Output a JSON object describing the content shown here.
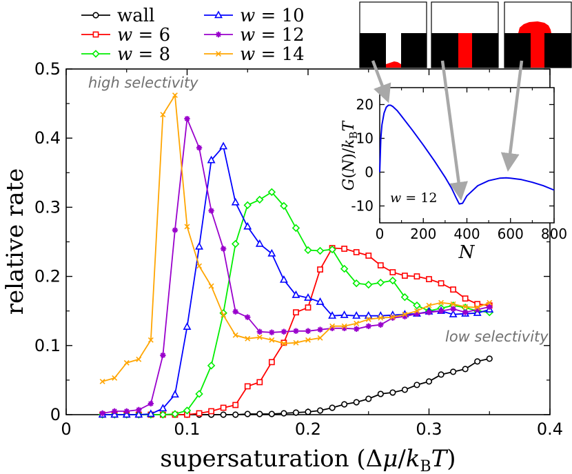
{
  "chart_data": [
    {
      "type": "line",
      "title": "",
      "xlabel": "supersaturation  (Δμ/k_B T)",
      "ylabel": "relative rate",
      "xlim": [
        0,
        0.4
      ],
      "ylim": [
        0,
        0.5
      ],
      "xticks": [
        "0",
        "0.1",
        "0.2",
        "0.3",
        "0.4"
      ],
      "yticks": [
        "0",
        "0.1",
        "0.2",
        "0.3",
        "0.4",
        "0.5"
      ],
      "legend_position": "top-left",
      "annotations": [
        "high selectivity",
        "low selectivity"
      ],
      "series": [
        {
          "name": "wall",
          "label_text": "wall",
          "color": "#000000",
          "marker": "circle",
          "x": [
            0.03,
            0.04,
            0.05,
            0.06,
            0.07,
            0.08,
            0.09,
            0.1,
            0.11,
            0.12,
            0.13,
            0.14,
            0.15,
            0.16,
            0.17,
            0.18,
            0.19,
            0.2,
            0.21,
            0.22,
            0.23,
            0.24,
            0.25,
            0.26,
            0.27,
            0.28,
            0.29,
            0.3,
            0.31,
            0.32,
            0.33,
            0.34,
            0.35
          ],
          "values": [
            0,
            0,
            0,
            0,
            0,
            0,
            0,
            0,
            0,
            0,
            0,
            0,
            0.001,
            0.001,
            0.001,
            0.002,
            0.003,
            0.004,
            0.006,
            0.01,
            0.015,
            0.018,
            0.023,
            0.03,
            0.032,
            0.036,
            0.043,
            0.048,
            0.058,
            0.062,
            0.066,
            0.077,
            0.081
          ]
        },
        {
          "name": "w = 6",
          "label_math": "6",
          "color": "#ff0000",
          "marker": "square",
          "x": [
            0.03,
            0.04,
            0.05,
            0.06,
            0.07,
            0.08,
            0.09,
            0.1,
            0.11,
            0.12,
            0.13,
            0.14,
            0.15,
            0.16,
            0.17,
            0.18,
            0.19,
            0.2,
            0.21,
            0.22,
            0.23,
            0.24,
            0.25,
            0.26,
            0.27,
            0.28,
            0.29,
            0.3,
            0.31,
            0.32,
            0.33,
            0.34,
            0.35
          ],
          "values": [
            0,
            0,
            0,
            0,
            0,
            0,
            0,
            0,
            0.002,
            0.005,
            0.01,
            0.014,
            0.041,
            0.047,
            0.076,
            0.104,
            0.148,
            0.155,
            0.21,
            0.241,
            0.24,
            0.235,
            0.23,
            0.216,
            0.206,
            0.201,
            0.2,
            0.196,
            0.19,
            0.181,
            0.168,
            0.16,
            0.158
          ]
        },
        {
          "name": "w = 8",
          "label_math": "8",
          "color": "#00ee00",
          "marker": "diamond",
          "x": [
            0.03,
            0.04,
            0.05,
            0.06,
            0.07,
            0.08,
            0.09,
            0.1,
            0.11,
            0.12,
            0.13,
            0.14,
            0.15,
            0.16,
            0.17,
            0.18,
            0.19,
            0.2,
            0.21,
            0.22,
            0.23,
            0.24,
            0.25,
            0.26,
            0.27,
            0.28,
            0.29,
            0.3,
            0.31,
            0.32,
            0.33,
            0.34,
            0.35
          ],
          "values": [
            0,
            0,
            0,
            0,
            0,
            0,
            0.001,
            0.006,
            0.03,
            0.071,
            0.147,
            0.247,
            0.303,
            0.311,
            0.322,
            0.302,
            0.27,
            0.238,
            0.237,
            0.239,
            0.211,
            0.19,
            0.188,
            0.191,
            0.194,
            0.17,
            0.158,
            0.15,
            0.154,
            0.158,
            0.155,
            0.15,
            0.148
          ]
        },
        {
          "name": "w = 10",
          "label_math": "10",
          "color": "#0000ff",
          "marker": "triangle",
          "x": [
            0.03,
            0.04,
            0.05,
            0.06,
            0.07,
            0.08,
            0.09,
            0.1,
            0.11,
            0.12,
            0.13,
            0.14,
            0.15,
            0.16,
            0.17,
            0.18,
            0.19,
            0.2,
            0.21,
            0.22,
            0.23,
            0.24,
            0.25,
            0.26,
            0.27,
            0.28,
            0.29,
            0.3,
            0.31,
            0.32,
            0.33,
            0.34,
            0.35
          ],
          "values": [
            0,
            0,
            0,
            0,
            0.001,
            0.009,
            0.029,
            0.127,
            0.243,
            0.368,
            0.388,
            0.307,
            0.272,
            0.247,
            0.233,
            0.195,
            0.173,
            0.169,
            0.163,
            0.143,
            0.144,
            0.143,
            0.143,
            0.143,
            0.144,
            0.145,
            0.146,
            0.149,
            0.15,
            0.145,
            0.146,
            0.147,
            0.152
          ]
        },
        {
          "name": "w = 12",
          "label_math": "12",
          "color": "#9900cc",
          "marker": "star",
          "x": [
            0.03,
            0.04,
            0.05,
            0.06,
            0.07,
            0.08,
            0.09,
            0.1,
            0.11,
            0.12,
            0.13,
            0.14,
            0.15,
            0.16,
            0.17,
            0.18,
            0.19,
            0.2,
            0.21,
            0.22,
            0.23,
            0.24,
            0.25,
            0.26,
            0.27,
            0.28,
            0.29,
            0.3,
            0.31,
            0.32,
            0.33,
            0.34,
            0.35
          ],
          "values": [
            0.002,
            0.005,
            0.005,
            0.007,
            0.016,
            0.086,
            0.267,
            0.428,
            0.386,
            0.295,
            0.24,
            0.149,
            0.141,
            0.12,
            0.119,
            0.12,
            0.121,
            0.121,
            0.123,
            0.125,
            0.125,
            0.124,
            0.128,
            0.13,
            0.14,
            0.142,
            0.146,
            0.148,
            0.15,
            0.153,
            0.148,
            0.152,
            0.156
          ]
        },
        {
          "name": "w = 14",
          "label_math": "14",
          "color": "#ffa500",
          "marker": "x",
          "x": [
            0.03,
            0.04,
            0.05,
            0.06,
            0.07,
            0.08,
            0.09,
            0.1,
            0.11,
            0.12,
            0.13,
            0.14,
            0.15,
            0.16,
            0.17,
            0.18,
            0.19,
            0.2,
            0.21,
            0.22,
            0.23,
            0.24,
            0.25,
            0.26,
            0.27,
            0.28,
            0.29,
            0.3,
            0.31,
            0.32,
            0.33,
            0.34,
            0.35
          ],
          "values": [
            0.048,
            0.053,
            0.075,
            0.08,
            0.108,
            0.434,
            0.462,
            0.272,
            0.215,
            0.186,
            0.144,
            0.115,
            0.11,
            0.112,
            0.108,
            0.103,
            0.104,
            0.108,
            0.111,
            0.128,
            0.128,
            0.132,
            0.138,
            0.14,
            0.141,
            0.145,
            0.15,
            0.158,
            0.162,
            0.16,
            0.156,
            0.155,
            0.162
          ]
        }
      ]
    },
    {
      "type": "line",
      "title": "",
      "xlabel": "N",
      "ylabel": "G(N)/k_B T",
      "xlim": [
        0,
        800
      ],
      "ylim": [
        -15,
        25
      ],
      "xticks": [
        "0",
        "200",
        "400",
        "600",
        "800"
      ],
      "yticks": [
        "-10",
        "0",
        "10",
        "20"
      ],
      "annotations": [
        "w = 12"
      ],
      "annotation_value": "12",
      "series": [
        {
          "name": "G(N)",
          "color": "#0000ee",
          "x": [
            0,
            5,
            10,
            20,
            30,
            40,
            50,
            60,
            80,
            100,
            150,
            200,
            250,
            300,
            330,
            350,
            365,
            380,
            400,
            450,
            500,
            550,
            580,
            600,
            650,
            700,
            750,
            800
          ],
          "values": [
            0,
            10,
            14,
            17.5,
            19.2,
            19.8,
            19.8,
            19.4,
            18.2,
            16.6,
            12.4,
            8,
            3.4,
            -1.5,
            -4.8,
            -7.5,
            -9.4,
            -9.2,
            -7,
            -4,
            -2.5,
            -1.8,
            -1.7,
            -1.8,
            -2.2,
            -3,
            -4,
            -5.3
          ]
        }
      ]
    }
  ],
  "snapshots": {
    "count": 3,
    "pore_color": "#ff0000",
    "solid_color": "#000000"
  }
}
